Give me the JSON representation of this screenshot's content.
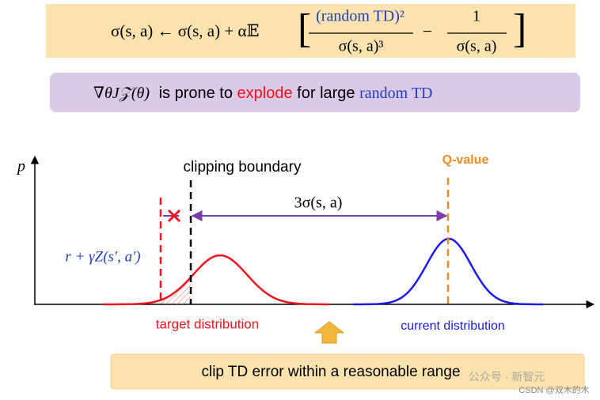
{
  "formula": {
    "lhs": "σ(s, a) ← σ(s, a) + α𝔼",
    "numerator_1": "(random TD)²",
    "denominator_1": "σ(s, a)³",
    "minus": "−",
    "numerator_2": "1",
    "denominator_2": "σ(s, a)"
  },
  "banner": {
    "gradient": "∇θJ𝒵(θ)",
    "text_1": "is prone to",
    "highlight_1": "explode",
    "text_2": "for large",
    "highlight_2": "random TD"
  },
  "plot": {
    "y_axis_label": "p",
    "clipping_boundary": "clipping boundary",
    "q_value": "Q-value",
    "distance_label": "3σ(s, a)",
    "target_label": "r + γZ(s′, a′)",
    "target_distribution": "target distribution",
    "current_distribution": "current distribution"
  },
  "footer": {
    "text": "clip TD error within a reasonable range"
  },
  "watermark": {
    "wechat": "公众号 · 新智元",
    "csdn": "CSDN @双木的木"
  }
}
